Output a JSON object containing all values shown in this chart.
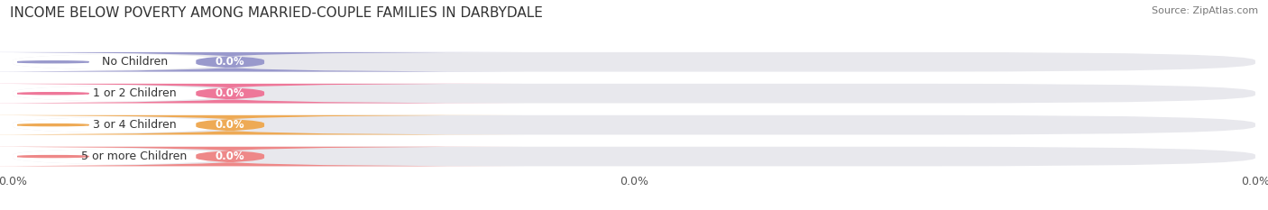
{
  "title": "INCOME BELOW POVERTY AMONG MARRIED-COUPLE FAMILIES IN DARBYDALE",
  "source": "Source: ZipAtlas.com",
  "categories": [
    "No Children",
    "1 or 2 Children",
    "3 or 4 Children",
    "5 or more Children"
  ],
  "values": [
    0.0,
    0.0,
    0.0,
    0.0
  ],
  "bar_colors": [
    "#9999cc",
    "#ee7799",
    "#eeaa55",
    "#ee8888"
  ],
  "circle_colors": [
    "#9999cc",
    "#ee7799",
    "#eeaa55",
    "#ee8888"
  ],
  "row_bg_color": "#e8e8ee",
  "label_bg_color": "#ffffff",
  "title_fontsize": 11,
  "source_fontsize": 8,
  "label_fontsize": 9,
  "value_fontsize": 8.5,
  "tick_fontsize": 9,
  "figsize": [
    14.06,
    2.33
  ],
  "dpi": 100,
  "tick_labels": [
    "0.0%",
    "0.0%",
    "0.0%"
  ]
}
